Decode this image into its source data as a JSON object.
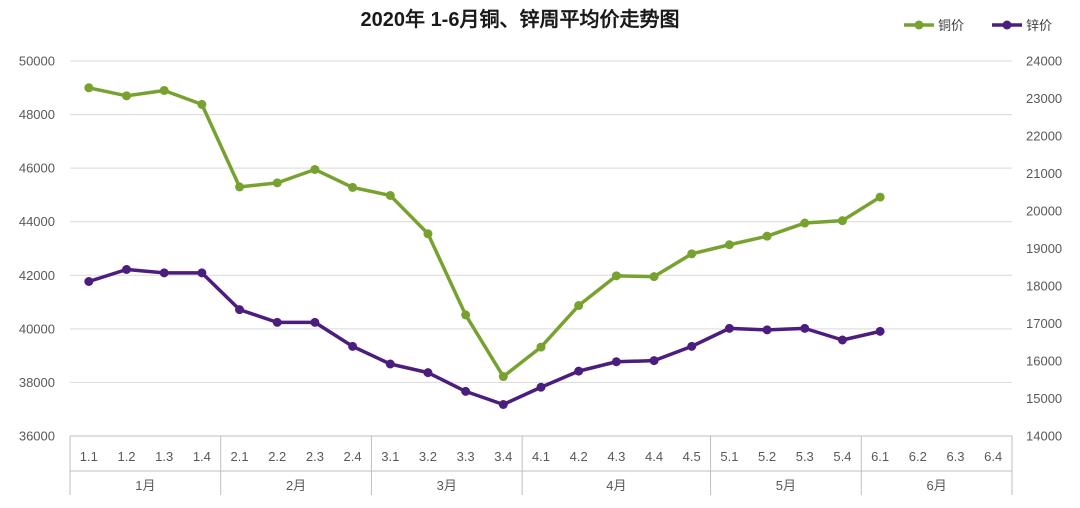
{
  "chart_data": {
    "type": "line",
    "title": "2020年 1-6月铜、锌周平均价走势图",
    "legend_position": "top-right",
    "grid": true,
    "categories": [
      "1.1",
      "1.2",
      "1.3",
      "1.4",
      "2.1",
      "2.2",
      "2.3",
      "2.4",
      "3.1",
      "3.2",
      "3.3",
      "3.4",
      "4.1",
      "4.2",
      "4.3",
      "4.4",
      "4.5",
      "5.1",
      "5.2",
      "5.3",
      "5.4",
      "6.1",
      "6.2",
      "6.3",
      "6.4"
    ],
    "month_groups": [
      {
        "label": "1月",
        "count": 4
      },
      {
        "label": "2月",
        "count": 4
      },
      {
        "label": "3月",
        "count": 4
      },
      {
        "label": "4月",
        "count": 5
      },
      {
        "label": "5月",
        "count": 4
      },
      {
        "label": "6月",
        "count": 4
      }
    ],
    "y_left": {
      "min": 36000,
      "max": 50000,
      "step": 2000,
      "ticks": [
        "36000",
        "38000",
        "40000",
        "42000",
        "44000",
        "46000",
        "48000",
        "50000"
      ]
    },
    "y_right": {
      "min": 14000,
      "max": 24000,
      "step": 1000,
      "ticks": [
        "14000",
        "15000",
        "16000",
        "17000",
        "18000",
        "19000",
        "20000",
        "21000",
        "22000",
        "23000",
        "24000"
      ]
    },
    "series": [
      {
        "name": "铜价",
        "axis": "left",
        "color": "#78a22f",
        "values": [
          49000,
          48700,
          48900,
          48380,
          45300,
          45450,
          45950,
          45280,
          44980,
          43550,
          40520,
          38220,
          39320,
          40870,
          41980,
          41950,
          42800,
          43140,
          43460,
          43950,
          44040,
          44920,
          null,
          null,
          null
        ]
      },
      {
        "name": "锌价",
        "axis": "right",
        "color": "#4b1d7e",
        "values": [
          18120,
          18440,
          18350,
          18350,
          17370,
          17030,
          17030,
          16390,
          15920,
          15690,
          15190,
          14840,
          15300,
          15730,
          15980,
          16010,
          16390,
          16870,
          16830,
          16870,
          16560,
          16790,
          null,
          null,
          null
        ]
      }
    ]
  }
}
